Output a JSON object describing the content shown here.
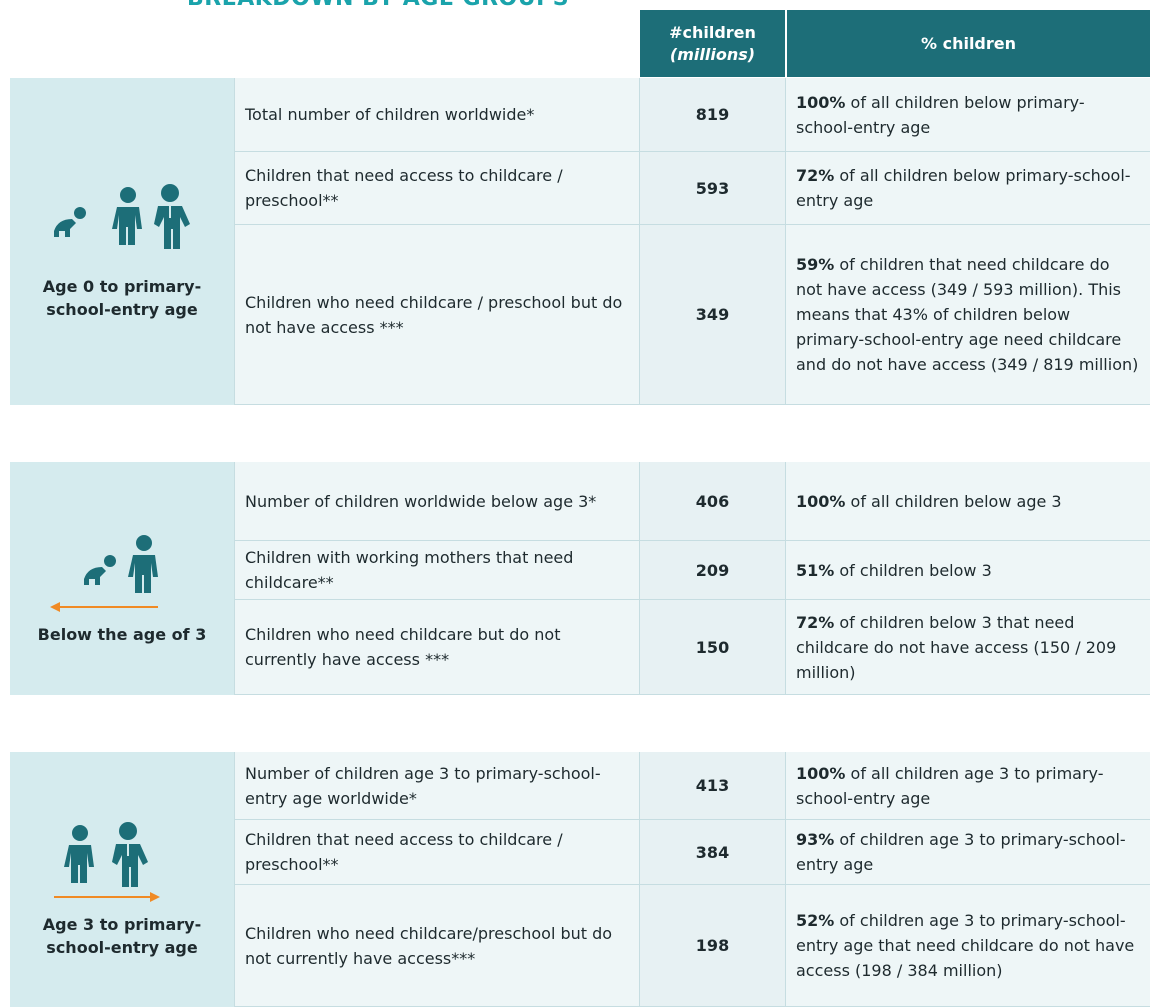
{
  "title": "BREAKDOWN BY AGE GROUPS",
  "header": {
    "count": "#children",
    "count_unit": "(millions)",
    "percent": "% children"
  },
  "groups": [
    {
      "label": "Age 0 to primary- school-entry age",
      "rows": [
        {
          "description": "Total number of children worldwide*",
          "number": "819",
          "pct_bold": "100%",
          "pct_text": "of all children below primary-school-entry age"
        },
        {
          "description": "Children that need access to childcare / preschool**",
          "number": "593",
          "pct_bold": "72%",
          "pct_text": "of all children below primary-school-entry age"
        },
        {
          "description": "Children who need childcare / preschool but do not have access ***",
          "number": "349",
          "pct_bold": "59%",
          "pct_text": "of children that need childcare do not have access (349 / 593 million). This means that 43% of children below primary-school-entry age need childcare and do not have access (349 / 819 million)"
        }
      ]
    },
    {
      "label": "Below the age of 3",
      "rows": [
        {
          "description": "Number of children worldwide below age 3*",
          "number": "406",
          "pct_bold": "100%",
          "pct_text": "of all children below age 3"
        },
        {
          "description": "Children with working mothers that need childcare**",
          "number": "209",
          "pct_bold": "51%",
          "pct_text": "of children below 3"
        },
        {
          "description": "Children who need childcare but do not currently have access ***",
          "number": "150",
          "pct_bold": "72%",
          "pct_text": "of children below 3 that need childcare do not have access (150 / 209 million)"
        }
      ]
    },
    {
      "label": "Age 3 to primary-school-entry age",
      "rows": [
        {
          "description": "Number of children age 3 to primary-school-entry age worldwide*",
          "number": "413",
          "pct_bold": "100%",
          "pct_text": "of all children age 3 to primary-school-entry age"
        },
        {
          "description": "Children that need access to childcare / preschool**",
          "number": "384",
          "pct_bold": "93%",
          "pct_text": "of children age 3 to primary-school-entry age"
        },
        {
          "description": "Children who need childcare/preschool but do not currently have access***",
          "number": "198",
          "pct_bold": "52%",
          "pct_text": "of children age 3 to primary-school-entry age that need childcare do not have access (198 / 384 million)"
        }
      ]
    }
  ]
}
